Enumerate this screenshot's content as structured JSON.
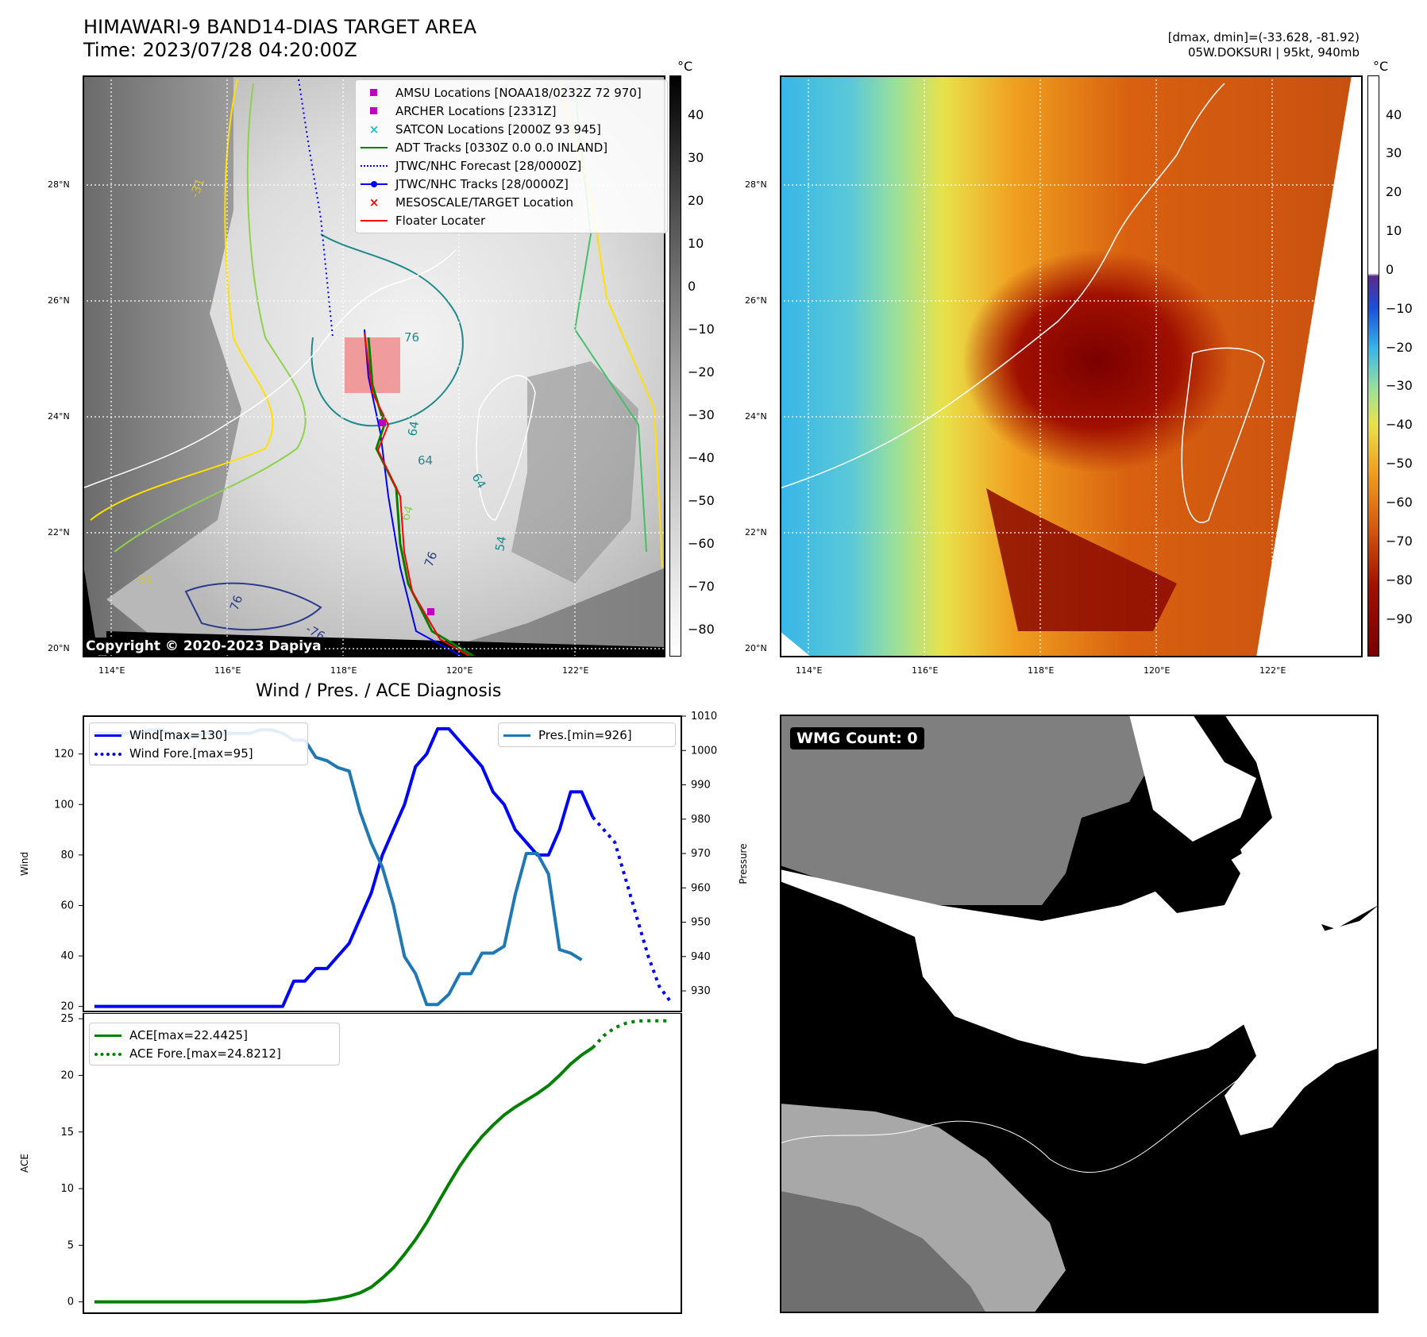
{
  "header": {
    "title_line1": "HIMAWARI-9 BAND14-DIAS TARGET AREA",
    "title_line2": "Time: 2023/07/28 04:20:00Z",
    "right_line1": "[dmax, dmin]=(-33.628, -81.92)",
    "right_line2": "05W.DOKSURI | 95kt, 940mb"
  },
  "map": {
    "lat_labels": [
      "28°N",
      "26°N",
      "24°N",
      "22°N",
      "20°N"
    ],
    "lon_labels": [
      "114°E",
      "116°E",
      "118°E",
      "120°E",
      "122°E"
    ],
    "copyright": "Copyright © 2020-2023 Dapiya",
    "contour_labels": [
      "-31",
      "-31",
      "64",
      "64",
      "64",
      "54",
      "76",
      "76",
      "-76",
      "76",
      "64"
    ],
    "colors": {
      "grey_max": "#ffffff",
      "grey_min": "#000000"
    }
  },
  "colorbar_left": {
    "unit": "°C",
    "ticks": [
      "40",
      "30",
      "20",
      "10",
      "0",
      "−10",
      "−20",
      "−30",
      "−40",
      "−50",
      "−60",
      "−70",
      "−80"
    ]
  },
  "colorbar_right": {
    "unit": "°C",
    "ticks": [
      "40",
      "30",
      "20",
      "10",
      "0",
      "−10",
      "−20",
      "−30",
      "−40",
      "−50",
      "−60",
      "−70",
      "−80",
      "−90"
    ]
  },
  "legend_map": {
    "items": [
      {
        "label": "AMSU Locations [NOAA18/0232Z 72 970]",
        "marker": "square",
        "color": "#bf00bf"
      },
      {
        "label": "ARCHER Locations [2331Z]",
        "marker": "square",
        "color": "#bf00bf"
      },
      {
        "label": "SATCON Locations [2000Z 93 945]",
        "marker": "x",
        "color": "#17becf"
      },
      {
        "label": "ADT Tracks [0330Z 0.0 0.0 INLAND]",
        "marker": "line",
        "color": "#008000"
      },
      {
        "label": "JTWC/NHC Forecast [28/0000Z]",
        "marker": "dotted",
        "color": "#0000ff"
      },
      {
        "label": "JTWC/NHC Tracks [28/0000Z]",
        "marker": "line-dot",
        "color": "#0000ff"
      },
      {
        "label": "MESOSCALE/TARGET Location",
        "marker": "x",
        "color": "#ff0000"
      },
      {
        "label": "Floater Locater",
        "marker": "line",
        "color": "#ff0000"
      }
    ]
  },
  "wmg": {
    "label": "WMG Count: 0"
  },
  "chart_data": [
    {
      "type": "line",
      "title": "Wind / Pres. / ACE Diagnosis",
      "ylabel": "Wind",
      "ylabel_right": "Pressure",
      "ylim": [
        18,
        135
      ],
      "ylim_right": [
        924,
        1010
      ],
      "yticks": [
        20,
        40,
        60,
        80,
        100,
        120
      ],
      "yticks_right": [
        930,
        940,
        950,
        960,
        970,
        980,
        990,
        1000,
        1010
      ],
      "series": [
        {
          "name": "Wind[max=130]",
          "color": "#0000ff",
          "style": "solid",
          "axis": "left",
          "x": [
            0,
            1,
            2,
            3,
            4,
            5,
            6,
            7,
            8,
            9,
            10,
            11,
            12,
            13,
            14,
            15,
            16,
            17,
            18,
            19,
            20,
            21,
            22,
            23,
            24,
            25,
            26,
            27,
            28,
            29,
            30,
            31,
            32,
            33,
            34,
            35,
            36,
            37,
            38,
            39,
            40,
            41,
            42,
            43,
            44,
            45
          ],
          "values": [
            20,
            20,
            20,
            20,
            20,
            20,
            20,
            20,
            20,
            20,
            20,
            20,
            20,
            20,
            20,
            20,
            20,
            20,
            30,
            30,
            35,
            35,
            40,
            45,
            55,
            65,
            80,
            90,
            100,
            115,
            120,
            130,
            130,
            125,
            120,
            115,
            105,
            100,
            90,
            85,
            80,
            80,
            90,
            105,
            105,
            95
          ]
        },
        {
          "name": "Wind Fore.[max=95]",
          "color": "#0000ff",
          "style": "dotted",
          "axis": "left",
          "x": [
            45,
            46,
            47,
            48,
            49,
            50,
            51,
            52
          ],
          "values": [
            95,
            90,
            85,
            70,
            55,
            40,
            28,
            22
          ]
        },
        {
          "name": "Pres.[min=926]",
          "color": "#1f77b4",
          "style": "solid",
          "axis": "right",
          "x": [
            0,
            1,
            2,
            3,
            4,
            5,
            6,
            7,
            8,
            9,
            10,
            11,
            12,
            13,
            14,
            15,
            16,
            17,
            18,
            19,
            20,
            21,
            22,
            23,
            24,
            25,
            26,
            27,
            28,
            29,
            30,
            31,
            32,
            33,
            34,
            35,
            36,
            37,
            38,
            39,
            40,
            41,
            42,
            43,
            44,
            45
          ],
          "values": [
            1005,
            1005,
            1005,
            1005,
            1005,
            1006,
            1006,
            1005,
            1004,
            1004,
            1005,
            1005,
            1005,
            1005,
            1005,
            1006,
            1006,
            1005,
            1003,
            1003,
            998,
            997,
            995,
            994,
            982,
            973,
            966,
            955,
            940,
            935,
            926,
            926,
            929,
            935,
            935,
            941,
            941,
            943,
            958,
            970,
            970,
            964,
            942,
            941,
            939,
            null
          ]
        }
      ]
    },
    {
      "type": "line",
      "ylabel": "ACE",
      "ylim": [
        -1,
        25.5
      ],
      "yticks": [
        0,
        5,
        10,
        15,
        20,
        25
      ],
      "series": [
        {
          "name": "ACE[max=22.4425]",
          "color": "#008000",
          "style": "solid",
          "x": [
            0,
            1,
            2,
            3,
            4,
            5,
            6,
            7,
            8,
            9,
            10,
            11,
            12,
            13,
            14,
            15,
            16,
            17,
            18,
            19,
            20,
            21,
            22,
            23,
            24,
            25,
            26,
            27,
            28,
            29,
            30,
            31,
            32,
            33,
            34,
            35,
            36,
            37,
            38,
            39,
            40,
            41,
            42,
            43,
            44,
            45
          ],
          "values": [
            0,
            0,
            0,
            0,
            0,
            0,
            0,
            0,
            0,
            0,
            0,
            0,
            0,
            0,
            0,
            0,
            0,
            0,
            0,
            0,
            0.05,
            0.15,
            0.3,
            0.5,
            0.8,
            1.3,
            2.1,
            3.0,
            4.2,
            5.5,
            7.0,
            8.7,
            10.4,
            12.0,
            13.4,
            14.6,
            15.6,
            16.5,
            17.2,
            17.8,
            18.4,
            19.1,
            20.0,
            21.0,
            21.8,
            22.44
          ]
        },
        {
          "name": "ACE Fore.[max=24.8212]",
          "color": "#008000",
          "style": "dotted",
          "x": [
            45,
            46,
            47,
            48,
            49,
            50,
            51,
            52
          ],
          "values": [
            22.44,
            23.5,
            24.2,
            24.6,
            24.8,
            24.82,
            24.82,
            24.82
          ]
        }
      ]
    }
  ]
}
